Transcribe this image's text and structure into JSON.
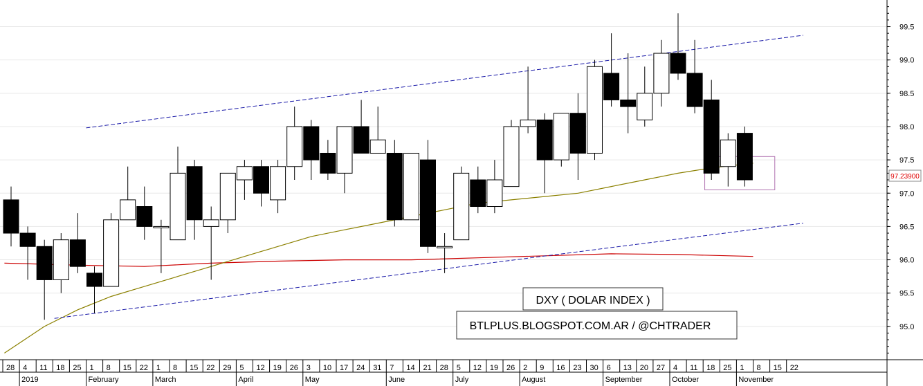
{
  "chart_data": {
    "type": "candlestick",
    "timeframe": "weekly",
    "ylim": [
      94.5,
      99.9
    ],
    "y_ticks": [
      95.0,
      95.5,
      96.0,
      96.5,
      97.0,
      97.5,
      98.0,
      98.5,
      99.0,
      99.5
    ],
    "y_tick_labels": [
      "95.0",
      "95.5",
      "96.0",
      "96.5",
      "97.0",
      "97.5",
      "98.0",
      "98.5",
      "99.0",
      "99.5"
    ],
    "last_price_label": "97.23900",
    "week_labels": [
      "28",
      "4",
      "11",
      "18",
      "25",
      "1",
      "8",
      "15",
      "22",
      "1",
      "8",
      "15",
      "22",
      "29",
      "5",
      "12",
      "19",
      "26",
      "3",
      "10",
      "17",
      "24",
      "31",
      "7",
      "14",
      "21",
      "28",
      "5",
      "12",
      "19",
      "26",
      "2",
      "9",
      "16",
      "23",
      "30",
      "6",
      "13",
      "20",
      "27",
      "4",
      "11",
      "18",
      "25",
      "1",
      "8",
      "15",
      "22"
    ],
    "month_labels": [
      {
        "label": "2019",
        "week_index": 1
      },
      {
        "label": "February",
        "week_index": 5
      },
      {
        "label": "March",
        "week_index": 9
      },
      {
        "label": "April",
        "week_index": 14
      },
      {
        "label": "May",
        "week_index": 18
      },
      {
        "label": "June",
        "week_index": 23
      },
      {
        "label": "July",
        "week_index": 27
      },
      {
        "label": "August",
        "week_index": 31
      },
      {
        "label": "September",
        "week_index": 36
      },
      {
        "label": "October",
        "week_index": 40
      },
      {
        "label": "November",
        "week_index": 44
      }
    ],
    "candles": [
      {
        "w": 0,
        "o": 96.9,
        "h": 97.1,
        "l": 96.2,
        "c": 96.4
      },
      {
        "w": 1,
        "o": 96.4,
        "h": 96.5,
        "l": 95.7,
        "c": 96.2
      },
      {
        "w": 2,
        "o": 96.2,
        "h": 96.3,
        "l": 95.1,
        "c": 95.7
      },
      {
        "w": 3,
        "o": 95.7,
        "h": 96.4,
        "l": 95.5,
        "c": 96.3
      },
      {
        "w": 4,
        "o": 96.3,
        "h": 96.7,
        "l": 95.8,
        "c": 95.9
      },
      {
        "w": 5,
        "o": 95.8,
        "h": 95.9,
        "l": 95.2,
        "c": 95.6
      },
      {
        "w": 6,
        "o": 95.6,
        "h": 96.7,
        "l": 95.6,
        "c": 96.6
      },
      {
        "w": 7,
        "o": 96.6,
        "h": 97.4,
        "l": 96.6,
        "c": 96.9
      },
      {
        "w": 8,
        "o": 96.8,
        "h": 97.1,
        "l": 96.3,
        "c": 96.5
      },
      {
        "w": 9,
        "o": 96.5,
        "h": 96.6,
        "l": 95.8,
        "c": 96.5
      },
      {
        "w": 10,
        "o": 96.3,
        "h": 97.7,
        "l": 96.3,
        "c": 97.3
      },
      {
        "w": 11,
        "o": 97.4,
        "h": 97.5,
        "l": 96.3,
        "c": 96.6
      },
      {
        "w": 12,
        "o": 96.5,
        "h": 96.8,
        "l": 95.7,
        "c": 96.6
      },
      {
        "w": 13,
        "o": 96.6,
        "h": 97.3,
        "l": 96.4,
        "c": 97.3
      },
      {
        "w": 14,
        "o": 97.2,
        "h": 97.5,
        "l": 96.9,
        "c": 97.4
      },
      {
        "w": 15,
        "o": 97.4,
        "h": 97.5,
        "l": 96.8,
        "c": 97.0
      },
      {
        "w": 16,
        "o": 96.9,
        "h": 97.5,
        "l": 96.7,
        "c": 97.4
      },
      {
        "w": 17,
        "o": 97.4,
        "h": 98.3,
        "l": 97.2,
        "c": 98.0
      },
      {
        "w": 18,
        "o": 98.0,
        "h": 98.1,
        "l": 97.2,
        "c": 97.5
      },
      {
        "w": 19,
        "o": 97.6,
        "h": 97.8,
        "l": 97.2,
        "c": 97.3
      },
      {
        "w": 20,
        "o": 97.3,
        "h": 98.0,
        "l": 97.0,
        "c": 98.0
      },
      {
        "w": 21,
        "o": 98.0,
        "h": 98.4,
        "l": 97.6,
        "c": 97.6
      },
      {
        "w": 22,
        "o": 97.6,
        "h": 98.3,
        "l": 97.6,
        "c": 97.8
      },
      {
        "w": 23,
        "o": 97.6,
        "h": 97.8,
        "l": 96.5,
        "c": 96.6
      },
      {
        "w": 24,
        "o": 96.6,
        "h": 97.6,
        "l": 96.6,
        "c": 97.6
      },
      {
        "w": 25,
        "o": 97.5,
        "h": 97.8,
        "l": 96.1,
        "c": 96.2
      },
      {
        "w": 26,
        "o": 96.2,
        "h": 96.4,
        "l": 95.8,
        "c": 96.2
      },
      {
        "w": 27,
        "o": 96.3,
        "h": 97.4,
        "l": 96.3,
        "c": 97.3
      },
      {
        "w": 28,
        "o": 97.2,
        "h": 97.4,
        "l": 96.7,
        "c": 96.8
      },
      {
        "w": 29,
        "o": 96.8,
        "h": 97.5,
        "l": 96.7,
        "c": 97.2
      },
      {
        "w": 30,
        "o": 97.1,
        "h": 98.1,
        "l": 97.1,
        "c": 98.0
      },
      {
        "w": 31,
        "o": 98.0,
        "h": 98.9,
        "l": 97.9,
        "c": 98.1
      },
      {
        "w": 32,
        "o": 98.1,
        "h": 98.2,
        "l": 97.0,
        "c": 97.5
      },
      {
        "w": 33,
        "o": 97.5,
        "h": 98.2,
        "l": 97.4,
        "c": 98.2
      },
      {
        "w": 34,
        "o": 98.2,
        "h": 98.5,
        "l": 97.2,
        "c": 97.6
      },
      {
        "w": 35,
        "o": 97.6,
        "h": 99.0,
        "l": 97.5,
        "c": 98.9
      },
      {
        "w": 36,
        "o": 98.8,
        "h": 99.4,
        "l": 98.3,
        "c": 98.4
      },
      {
        "w": 37,
        "o": 98.4,
        "h": 99.1,
        "l": 97.9,
        "c": 98.3
      },
      {
        "w": 38,
        "o": 98.1,
        "h": 98.9,
        "l": 98.0,
        "c": 98.5
      },
      {
        "w": 39,
        "o": 98.5,
        "h": 99.3,
        "l": 98.3,
        "c": 99.1
      },
      {
        "w": 40,
        "o": 99.1,
        "h": 99.7,
        "l": 98.7,
        "c": 98.8
      },
      {
        "w": 41,
        "o": 98.8,
        "h": 99.3,
        "l": 98.2,
        "c": 98.3
      },
      {
        "w": 42,
        "o": 98.4,
        "h": 98.7,
        "l": 97.2,
        "c": 97.3
      },
      {
        "w": 43,
        "o": 97.4,
        "h": 97.9,
        "l": 97.1,
        "c": 97.8
      },
      {
        "w": 44,
        "o": 97.9,
        "h": 98.0,
        "l": 97.1,
        "c": 97.2
      }
    ],
    "moving_average_fast": {
      "color": "#8b8000",
      "points": [
        [
          -0.4,
          94.6
        ],
        [
          2,
          95.0
        ],
        [
          4,
          95.25
        ],
        [
          6,
          95.45
        ],
        [
          8,
          95.6
        ],
        [
          10,
          95.75
        ],
        [
          12,
          95.9
        ],
        [
          14,
          96.05
        ],
        [
          16,
          96.2
        ],
        [
          18,
          96.35
        ],
        [
          20,
          96.45
        ],
        [
          22,
          96.55
        ],
        [
          24,
          96.65
        ],
        [
          26,
          96.75
        ],
        [
          28,
          96.85
        ],
        [
          30,
          96.9
        ],
        [
          32,
          96.95
        ],
        [
          34,
          97.0
        ],
        [
          36,
          97.1
        ],
        [
          38,
          97.2
        ],
        [
          40,
          97.3
        ],
        [
          42,
          97.38
        ],
        [
          44.5,
          97.45
        ]
      ]
    },
    "moving_average_slow": {
      "color": "#cc0000",
      "points": [
        [
          -0.4,
          95.95
        ],
        [
          4,
          95.92
        ],
        [
          8,
          95.9
        ],
        [
          12,
          95.95
        ],
        [
          16,
          95.98
        ],
        [
          20,
          96.0
        ],
        [
          24,
          96.0
        ],
        [
          28,
          96.03
        ],
        [
          32,
          96.06
        ],
        [
          36,
          96.09
        ],
        [
          40,
          96.08
        ],
        [
          44.5,
          96.05
        ]
      ]
    },
    "channel_upper": {
      "color": "#1a1aa8",
      "start": [
        4.5,
        97.98
      ],
      "end": [
        47.5,
        99.37
      ]
    },
    "channel_lower": {
      "color": "#1a1aa8",
      "start": [
        2.6,
        95.12
      ],
      "end": [
        47.5,
        96.55
      ]
    },
    "highlight_box": {
      "color": "#b070b0",
      "w_start": 41.6,
      "w_end": 45.8,
      "y_low": 97.05,
      "y_high": 97.55
    },
    "annotations": {
      "title": "DXY ( DOLAR INDEX )",
      "source": "BTLPLUS.BLOGSPOT.COM.AR / @CHTRADER"
    }
  }
}
